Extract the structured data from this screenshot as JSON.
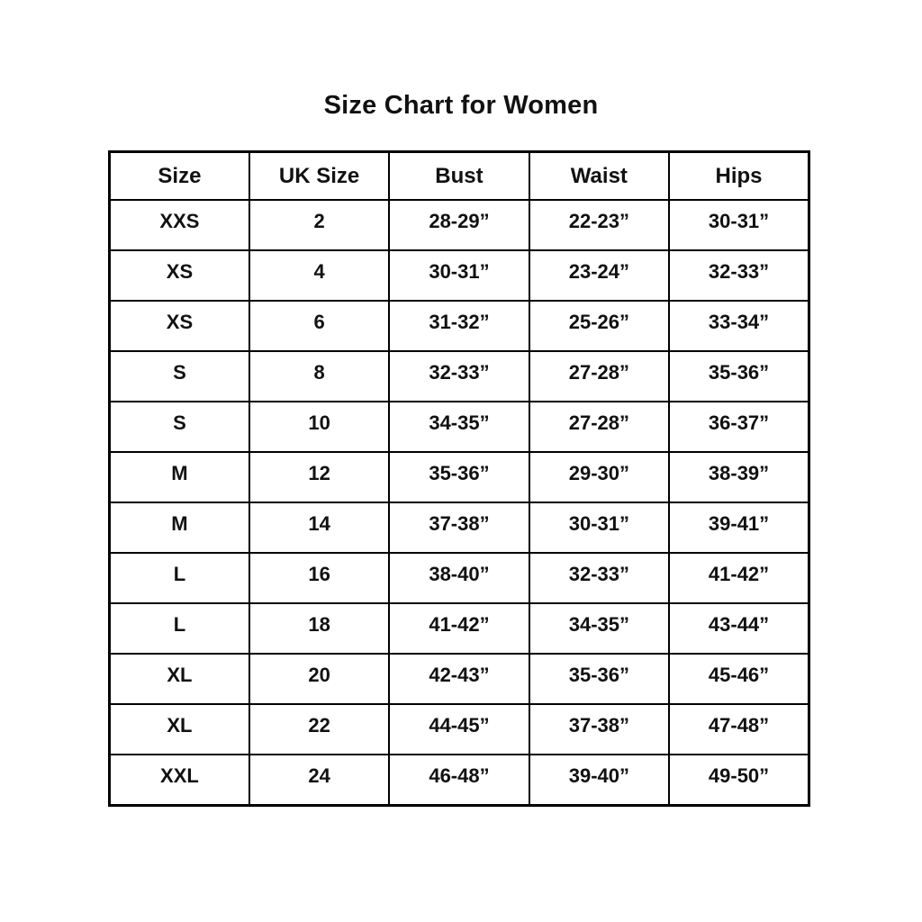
{
  "title": "Size Chart for Women",
  "table": {
    "headers": [
      "Size",
      "UK Size",
      "Bust",
      "Waist",
      "Hips"
    ],
    "rows": [
      [
        "XXS",
        "2",
        "28-29”",
        "22-23”",
        "30-31”"
      ],
      [
        "XS",
        "4",
        "30-31”",
        "23-24”",
        "32-33”"
      ],
      [
        "XS",
        "6",
        "31-32”",
        "25-26”",
        "33-34”"
      ],
      [
        "S",
        "8",
        "32-33”",
        "27-28”",
        "35-36”"
      ],
      [
        "S",
        "10",
        "34-35”",
        "27-28”",
        "36-37”"
      ],
      [
        "M",
        "12",
        "35-36”",
        "29-30”",
        "38-39”"
      ],
      [
        "M",
        "14",
        "37-38”",
        "30-31”",
        "39-41”"
      ],
      [
        "L",
        "16",
        "38-40”",
        "32-33”",
        "41-42”"
      ],
      [
        "L",
        "18",
        "41-42”",
        "34-35”",
        "43-44”"
      ],
      [
        "XL",
        "20",
        "42-43”",
        "35-36”",
        "45-46”"
      ],
      [
        "XL",
        "22",
        "44-45”",
        "37-38”",
        "47-48”"
      ],
      [
        "XXL",
        "24",
        "46-48”",
        "39-40”",
        "49-50”"
      ]
    ]
  },
  "chart_data": {
    "type": "table",
    "title": "Size Chart for Women",
    "columns": [
      "Size",
      "UK Size",
      "Bust",
      "Waist",
      "Hips"
    ],
    "rows": [
      {
        "size": "XXS",
        "uk_size": "2",
        "bust": "28-29”",
        "waist": "22-23”",
        "hips": "30-31”"
      },
      {
        "size": "XS",
        "uk_size": "4",
        "bust": "30-31”",
        "waist": "23-24”",
        "hips": "32-33”"
      },
      {
        "size": "XS",
        "uk_size": "6",
        "bust": "31-32”",
        "waist": "25-26”",
        "hips": "33-34”"
      },
      {
        "size": "S",
        "uk_size": "8",
        "bust": "32-33”",
        "waist": "27-28”",
        "hips": "35-36”"
      },
      {
        "size": "S",
        "uk_size": "10",
        "bust": "34-35”",
        "waist": "27-28”",
        "hips": "36-37”"
      },
      {
        "size": "M",
        "uk_size": "12",
        "bust": "35-36”",
        "waist": "29-30”",
        "hips": "38-39”"
      },
      {
        "size": "M",
        "uk_size": "14",
        "bust": "37-38”",
        "waist": "30-31”",
        "hips": "39-41”"
      },
      {
        "size": "L",
        "uk_size": "16",
        "bust": "38-40”",
        "waist": "32-33”",
        "hips": "41-42”"
      },
      {
        "size": "L",
        "uk_size": "18",
        "bust": "41-42”",
        "waist": "34-35”",
        "hips": "43-44”"
      },
      {
        "size": "XL",
        "uk_size": "20",
        "bust": "42-43”",
        "waist": "35-36”",
        "hips": "45-46”"
      },
      {
        "size": "XL",
        "uk_size": "22",
        "bust": "44-45”",
        "waist": "37-38”",
        "hips": "47-48”"
      },
      {
        "size": "XXL",
        "uk_size": "24",
        "bust": "46-48”",
        "waist": "39-40”",
        "hips": "49-50”"
      }
    ],
    "layout": {
      "grid": "all-borders",
      "header_row": true,
      "text_align": "center"
    }
  },
  "colors": {
    "background": "#ffffff",
    "border": "#000000",
    "text": "#111111"
  }
}
